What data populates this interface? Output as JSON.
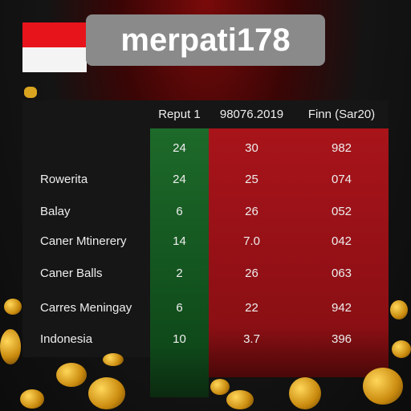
{
  "header": {
    "title": "merpati178"
  },
  "table": {
    "columns": [
      "Reput 1",
      "98076.2019",
      "Finn (Sar20)"
    ],
    "rows": [
      {
        "values": [
          "24",
          "30",
          "982"
        ]
      },
      {
        "label": "Rowerita",
        "values": [
          "24",
          "25",
          "074"
        ]
      },
      {
        "label": "Balay",
        "values": [
          "6",
          "26",
          "052"
        ]
      },
      {
        "label": "Caner Mtinerery",
        "values": [
          "14",
          "7.0",
          "042"
        ]
      },
      {
        "label": "Caner Balls",
        "values": [
          "2",
          "26",
          "063"
        ]
      },
      {
        "label": "Carres Meningay",
        "values": [
          "6",
          "22",
          "942"
        ]
      },
      {
        "label": "Indonesia",
        "values": [
          "10",
          "3.7",
          "396"
        ]
      }
    ]
  }
}
